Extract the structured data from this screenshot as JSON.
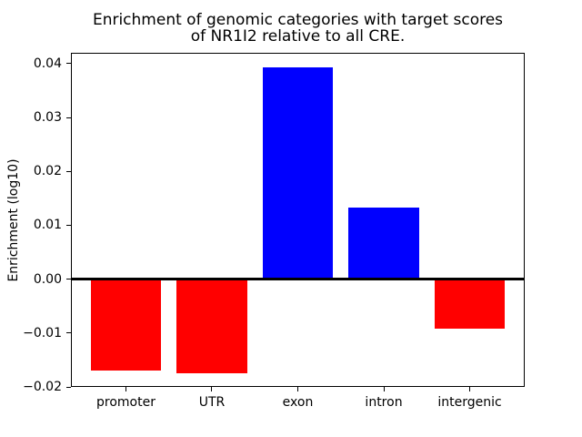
{
  "chart_data": {
    "type": "bar",
    "title_lines": [
      "Enrichment of genomic categories with target scores",
      "of NR1I2 relative to all CRE."
    ],
    "ylabel": "Enrichment (log10)",
    "xlabel": "",
    "categories": [
      "promoter",
      "UTR",
      "exon",
      "intron",
      "intergenic"
    ],
    "values": [
      -0.017,
      -0.0175,
      0.0393,
      0.0133,
      -0.0092
    ],
    "ylim": [
      -0.02,
      0.042
    ],
    "xlim": [
      -0.64,
      4.64
    ],
    "yticks": [
      0.04,
      0.03,
      0.02,
      0.01,
      0.0,
      -0.01,
      -0.02
    ],
    "ytick_labels": [
      "0.04",
      "0.03",
      "0.02",
      "0.01",
      "0.00",
      "−0.01",
      "−0.02"
    ],
    "bar_width_units": 0.82,
    "positive_color": "#0000ff",
    "negative_color": "#ff0000",
    "baseline_value": 0,
    "baseline_color": "#000000",
    "grid": false,
    "legend": "none"
  }
}
